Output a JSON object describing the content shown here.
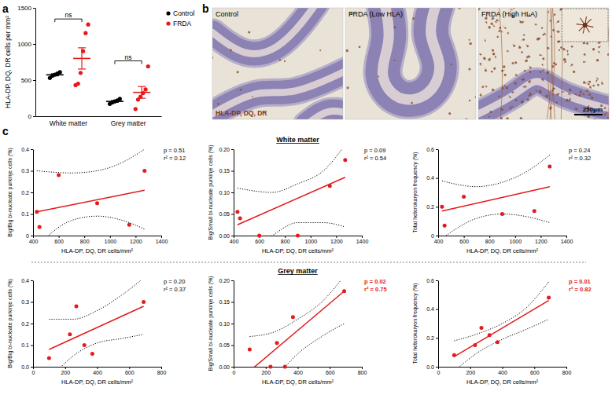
{
  "panel_labels": [
    "a",
    "b",
    "c"
  ],
  "sections": [
    "White matter",
    "Grey matter"
  ],
  "micrographs": {
    "panels": [
      "Control",
      "FRDA (Low HLA)",
      "FRDA (High HLA)"
    ],
    "stain": "HLA-DP, DQ, DR",
    "scale_bar": "250μm"
  },
  "chart_data": [
    {
      "type": "scatter",
      "y_label": "HLA-DP, DQ, DR cells per mm²",
      "categories": [
        "White matter",
        "Grey matter"
      ],
      "series": [
        {
          "name": "Control",
          "color": "#000000",
          "marker": "circle",
          "values": [
            [
              530,
              560,
              575,
              590,
              610
            ],
            [
              170,
              190,
              205,
              220,
              240
            ]
          ],
          "mean": [
            573,
            205
          ],
          "sem": [
            14,
            12
          ]
        },
        {
          "name": "FRDA",
          "color": "#e41a1c",
          "marker": "circle",
          "values": [
            [
              430,
              450,
              600,
              900,
              1150,
              1270
            ],
            [
              100,
              230,
              270,
              320,
              370,
              690
            ]
          ],
          "mean": [
            800,
            330
          ],
          "sem": [
            147,
            81
          ]
        }
      ],
      "significance": [
        "ns",
        "ns"
      ],
      "ylim": [
        0,
        1500
      ],
      "yticks": [
        0,
        500,
        1000,
        1500
      ],
      "legend": "top-right"
    },
    {
      "type": "scatter",
      "x_label": "HLA-DP, DQ, DR cells/mm²",
      "y_label": "Big/Big bi-nucleate purkinje cells (%)",
      "x": [
        430,
        450,
        600,
        900,
        1150,
        1270
      ],
      "values": [
        0.11,
        0.04,
        0.28,
        0.15,
        0.05,
        0.3
      ],
      "color": "#e41a1c",
      "marker": "circle",
      "fit": {
        "x": [
          430,
          1270
        ],
        "values": [
          0.11,
          0.21
        ]
      },
      "ci": {
        "x": [
          430,
          700,
          900,
          1100,
          1270
        ],
        "lower": [
          -0.05,
          0.07,
          0.09,
          0.07,
          0.03
        ],
        "upper": [
          0.3,
          0.29,
          0.3,
          0.34,
          0.4
        ],
        "color": "#000000",
        "line_style": "dotted"
      },
      "annotations": [
        {
          "text": "p = 0.51",
          "color": "#000000"
        },
        {
          "text": "r² = 0.12",
          "color": "#000000"
        }
      ],
      "xlim": [
        400,
        1400
      ],
      "xticks": [
        400,
        600,
        800,
        1000,
        1200,
        1400
      ],
      "ylim": [
        0,
        0.4
      ],
      "yticks": [
        0,
        0.1,
        0.2,
        0.3,
        0.4
      ]
    },
    {
      "type": "scatter",
      "x_label": "HLA-DP, DQ, DR cells/mm²",
      "y_label": "Big/Small bi-nucleate purkinje cells (%)",
      "x": [
        430,
        450,
        600,
        900,
        1150,
        1270
      ],
      "values": [
        0.055,
        0.04,
        0.0,
        0.0,
        0.115,
        0.175
      ],
      "color": "#e41a1c",
      "marker": "circle",
      "fit": {
        "x": [
          430,
          1270
        ],
        "values": [
          0.025,
          0.135
        ]
      },
      "ci": {
        "x": [
          430,
          700,
          900,
          1100,
          1270
        ],
        "lower": [
          -0.06,
          0.0,
          0.03,
          0.03,
          0.02
        ],
        "upper": [
          0.11,
          0.1,
          0.12,
          0.15,
          0.21
        ],
        "color": "#000000",
        "line_style": "dotted"
      },
      "annotations": [
        {
          "text": "p = 0.09",
          "color": "#000000"
        },
        {
          "text": "r² = 0.54",
          "color": "#000000"
        }
      ],
      "xlim": [
        400,
        1400
      ],
      "xticks": [
        400,
        600,
        800,
        1000,
        1200,
        1400
      ],
      "ylim": [
        0,
        0.2
      ],
      "yticks": [
        {
          "value": 0,
          "label": "0.00"
        },
        {
          "value": 0.05,
          "label": "0.05"
        },
        {
          "value": 0.1,
          "label": "0.10"
        },
        {
          "value": 0.15,
          "label": "0.15"
        },
        {
          "value": 0.2,
          "label": "0.20"
        }
      ]
    },
    {
      "type": "scatter",
      "x_label": "HLA-DP, DQ, DR cells/mm²",
      "y_label": "Total heterokaryon frequency (%)",
      "x": [
        430,
        450,
        600,
        900,
        1150,
        1270
      ],
      "values": [
        0.2,
        0.07,
        0.27,
        0.15,
        0.17,
        0.48
      ],
      "color": "#e41a1c",
      "marker": "circle",
      "fit": {
        "x": [
          430,
          1270
        ],
        "values": [
          0.17,
          0.34
        ]
      },
      "ci": {
        "x": [
          430,
          700,
          900,
          1100,
          1270
        ],
        "lower": [
          -0.02,
          0.12,
          0.15,
          0.13,
          0.09
        ],
        "upper": [
          0.38,
          0.34,
          0.37,
          0.45,
          0.56
        ],
        "color": "#000000",
        "line_style": "dotted"
      },
      "annotations": [
        {
          "text": "p = 0.24",
          "color": "#000000"
        },
        {
          "text": "r² = 0.32",
          "color": "#000000"
        }
      ],
      "xlim": [
        400,
        1400
      ],
      "xticks": [
        400,
        600,
        800,
        1000,
        1200,
        1400
      ],
      "ylim": [
        0,
        0.6
      ],
      "yticks": [
        0,
        0.2,
        0.4,
        0.6
      ]
    },
    {
      "type": "scatter",
      "x_label": "HLA-DP, DQ, DR cells/mm²",
      "y_label": "Big/Big bi-nucleate purkinje cells (%)",
      "x": [
        100,
        230,
        270,
        320,
        370,
        690
      ],
      "values": [
        0.04,
        0.15,
        0.28,
        0.1,
        0.06,
        0.3
      ],
      "color": "#e41a1c",
      "marker": "circle",
      "fit": {
        "x": [
          100,
          690
        ],
        "values": [
          0.08,
          0.28
        ]
      },
      "ci": {
        "x": [
          100,
          250,
          400,
          550,
          690
        ],
        "lower": [
          -0.06,
          0.05,
          0.11,
          0.13,
          0.15
        ],
        "upper": [
          0.22,
          0.22,
          0.26,
          0.33,
          0.41
        ],
        "color": "#000000",
        "line_style": "dotted"
      },
      "annotations": [
        {
          "text": "p = 0.20",
          "color": "#000000"
        },
        {
          "text": "r² = 0.37",
          "color": "#000000"
        }
      ],
      "xlim": [
        0,
        800
      ],
      "xticks": [
        0,
        200,
        400,
        600,
        800
      ],
      "ylim": [
        0,
        0.4
      ],
      "yticks": [
        {
          "value": 0,
          "label": "0.0"
        },
        0.1,
        0.2,
        0.3,
        0.4
      ]
    },
    {
      "type": "scatter",
      "x_label": "HLA-DP, DQ, DR cells/mm²",
      "y_label": "Big/Small bi-nucleate purkinje cells (%)",
      "x": [
        100,
        230,
        270,
        320,
        370,
        690
      ],
      "values": [
        0.04,
        0.0,
        0.055,
        0.0,
        0.115,
        0.175
      ],
      "color": "#e41a1c",
      "marker": "circle",
      "fit": {
        "x": [
          100,
          690
        ],
        "values": [
          -0.01,
          0.175
        ]
      },
      "ci": {
        "x": [
          100,
          250,
          400,
          550,
          690
        ],
        "lower": [
          -0.09,
          -0.03,
          0.03,
          0.07,
          0.1
        ],
        "upper": [
          0.07,
          0.08,
          0.11,
          0.15,
          0.21
        ],
        "color": "#000000",
        "line_style": "dotted"
      },
      "annotations": [
        {
          "text": "p = 0.02",
          "color": "#e41a1c"
        },
        {
          "text": "r² = 0.75",
          "color": "#e41a1c"
        }
      ],
      "xlim": [
        0,
        800
      ],
      "xticks": [
        0,
        200,
        400,
        600,
        800
      ],
      "ylim": [
        0,
        0.2
      ],
      "yticks": [
        {
          "value": 0,
          "label": "0.00"
        },
        {
          "value": 0.05,
          "label": "0.05"
        },
        {
          "value": 0.1,
          "label": "0.10"
        },
        {
          "value": 0.15,
          "label": "0.15"
        },
        {
          "value": 0.2,
          "label": "0.20"
        }
      ]
    },
    {
      "type": "scatter",
      "x_label": "HLA-DP, DQ, DR cells/mm²",
      "y_label": "Total heterokaryon frequency (%)",
      "x": [
        100,
        230,
        270,
        320,
        370,
        690
      ],
      "values": [
        0.08,
        0.15,
        0.27,
        0.22,
        0.17,
        0.48
      ],
      "color": "#e41a1c",
      "marker": "circle",
      "fit": {
        "x": [
          100,
          690
        ],
        "values": [
          0.07,
          0.46
        ]
      },
      "ci": {
        "x": [
          100,
          250,
          400,
          550,
          690
        ],
        "lower": [
          -0.03,
          0.1,
          0.19,
          0.26,
          0.33
        ],
        "upper": [
          0.18,
          0.23,
          0.3,
          0.41,
          0.59
        ],
        "color": "#000000",
        "line_style": "dotted"
      },
      "annotations": [
        {
          "text": "p = 0.01",
          "color": "#e41a1c"
        },
        {
          "text": "r² = 0.82",
          "color": "#e41a1c"
        }
      ],
      "xlim": [
        0,
        800
      ],
      "xticks": [
        0,
        200,
        400,
        600,
        800
      ],
      "ylim": [
        0,
        0.6
      ],
      "yticks": [
        {
          "value": 0,
          "label": "0.0"
        },
        0.2,
        0.4,
        0.6
      ]
    }
  ]
}
